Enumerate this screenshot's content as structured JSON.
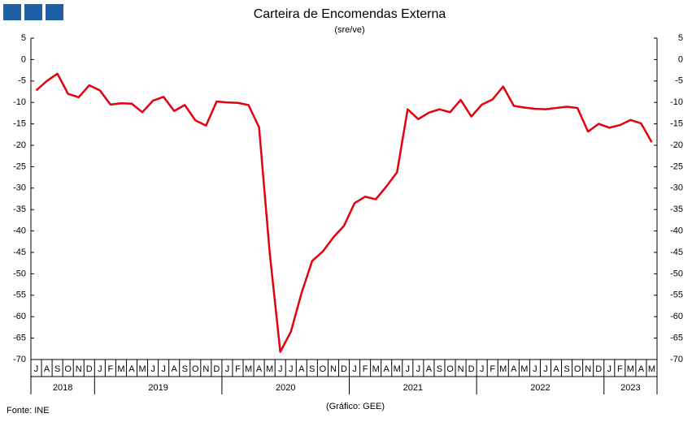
{
  "chart_data": {
    "type": "line",
    "title": "Carteira de Encomendas Externa",
    "subtitle": "(sre/ve)",
    "source": "Fonte: INE",
    "credit": "(Gráfico: GEE)",
    "categories": [
      "J",
      "A",
      "S",
      "O",
      "N",
      "D",
      "J",
      "F",
      "M",
      "A",
      "M",
      "J",
      "J",
      "A",
      "S",
      "O",
      "N",
      "D",
      "J",
      "F",
      "M",
      "A",
      "M",
      "J",
      "J",
      "A",
      "S",
      "O",
      "N",
      "D",
      "J",
      "F",
      "M",
      "A",
      "M",
      "J",
      "J",
      "A",
      "S",
      "O",
      "N",
      "D",
      "J",
      "F",
      "M",
      "A",
      "M",
      "J",
      "J",
      "A",
      "S",
      "O",
      "N",
      "D",
      "J",
      "F",
      "M",
      "A",
      "M"
    ],
    "years": [
      "2018",
      "2019",
      "2020",
      "2021",
      "2022",
      "2023"
    ],
    "series": [
      {
        "color": "#e3000f",
        "values": [
          -7.2,
          -5,
          -3.3,
          -8,
          -8.8,
          -6,
          -7.2,
          -10.5,
          -10.2,
          -10.3,
          -12.3,
          -9.6,
          -8.7,
          -12,
          -10.6,
          -14.2,
          -15.4,
          -9.8,
          -10,
          -10.1,
          -10.6,
          -15.8,
          -45,
          -68.2,
          -63.5,
          -54.5,
          -47,
          -44.8,
          -41.5,
          -38.8,
          -33.5,
          -32,
          -32.6,
          -29.6,
          -26.3,
          -11.6,
          -13.9,
          -12.4,
          -11.6,
          -12.3,
          -9.4,
          -13.3,
          -10.5,
          -9.3,
          -6.3,
          -10.8,
          -11.2,
          -11.5,
          -11.6,
          -11.3,
          -11,
          -11.3,
          -16.8,
          -15,
          -15.9,
          -15.3,
          -14.1,
          -14.9,
          -19.3
        ]
      }
    ],
    "ylim": [
      -70,
      5
    ],
    "yticks": [
      5,
      0,
      -5,
      -10,
      -15,
      -20,
      -25,
      -30,
      -35,
      -40,
      -45,
      -50,
      -55,
      -60,
      -65,
      -70
    ],
    "y2lim": [
      -70,
      5
    ],
    "y2ticks": [
      5,
      0,
      -5,
      -10,
      -15,
      -20,
      -25,
      -30,
      -35,
      -40,
      -45,
      -50,
      -55,
      -60,
      -65,
      -70
    ],
    "grid": false
  }
}
